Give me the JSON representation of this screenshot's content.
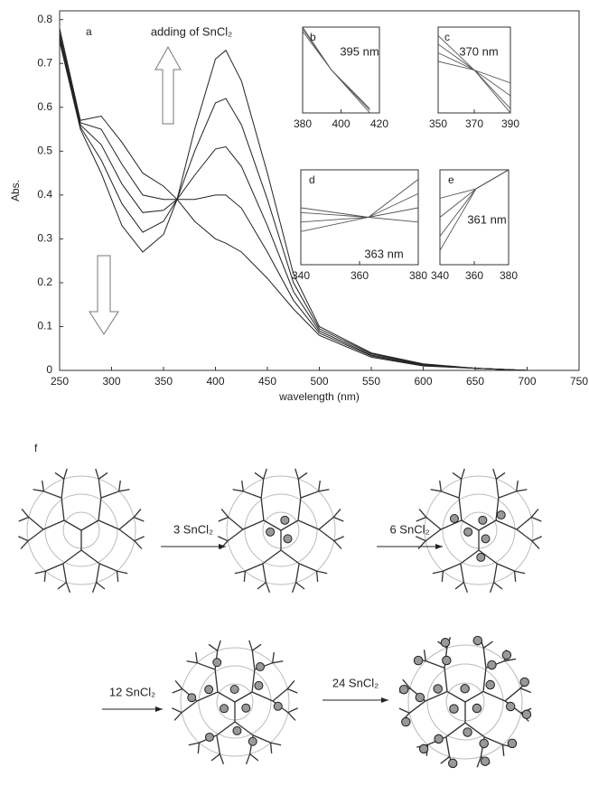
{
  "chart_data": [
    {
      "type": "line",
      "panel": "a",
      "xlabel": "wavelength (nm)",
      "ylabel": "Abs.",
      "annotation": "adding of SnCl₂",
      "x": [
        250,
        270,
        290,
        310,
        330,
        350,
        363,
        380,
        400,
        410,
        425,
        450,
        475,
        500,
        550,
        600,
        650,
        700,
        750
      ],
      "series": [
        {
          "color": "#222222",
          "values": [
            0.78,
            0.57,
            0.58,
            0.52,
            0.45,
            0.42,
            0.39,
            0.34,
            0.3,
            0.29,
            0.27,
            0.21,
            0.14,
            0.08,
            0.03,
            0.01,
            0.005,
            0,
            0
          ]
        },
        {
          "color": "#222222",
          "values": [
            0.77,
            0.565,
            0.55,
            0.47,
            0.4,
            0.39,
            0.39,
            0.39,
            0.4,
            0.4,
            0.37,
            0.27,
            0.16,
            0.085,
            0.033,
            0.011,
            0.005,
            0,
            0
          ]
        },
        {
          "color": "#222222",
          "values": [
            0.765,
            0.56,
            0.515,
            0.425,
            0.36,
            0.365,
            0.39,
            0.445,
            0.505,
            0.51,
            0.465,
            0.33,
            0.18,
            0.09,
            0.035,
            0.0125,
            0.005,
            0,
            0
          ]
        },
        {
          "color": "#222222",
          "values": [
            0.758,
            0.555,
            0.48,
            0.38,
            0.315,
            0.34,
            0.39,
            0.5,
            0.61,
            0.62,
            0.56,
            0.39,
            0.2,
            0.095,
            0.038,
            0.014,
            0.005,
            0,
            0
          ]
        },
        {
          "color": "#222222",
          "values": [
            0.75,
            0.55,
            0.45,
            0.33,
            0.27,
            0.31,
            0.39,
            0.55,
            0.71,
            0.73,
            0.66,
            0.45,
            0.22,
            0.1,
            0.04,
            0.015,
            0.005,
            0,
            0
          ]
        }
      ],
      "xlim": [
        250,
        750
      ],
      "ylim": [
        0,
        0.82
      ],
      "xticks": [
        250,
        300,
        350,
        400,
        450,
        500,
        550,
        600,
        650,
        700,
        750
      ],
      "yticks": [
        0,
        0.1,
        0.2,
        0.3,
        0.4,
        0.5,
        0.6,
        0.7,
        0.8
      ]
    },
    {
      "type": "line",
      "panel": "b",
      "annotation": "395 nm",
      "x": [
        380,
        395,
        415
      ],
      "series": [
        {
          "color": "#555555",
          "values": [
            1,
            0.5,
            0
          ]
        },
        {
          "color": "#555555",
          "values": [
            0.98,
            0.5,
            0.03
          ]
        },
        {
          "color": "#555555",
          "values": [
            0.95,
            0.5,
            0.05
          ]
        }
      ],
      "xlim": [
        380,
        420
      ],
      "ylim": [
        0,
        1
      ],
      "xticks": [
        380,
        400,
        420
      ]
    },
    {
      "type": "line",
      "panel": "c",
      "annotation": "370 nm",
      "x": [
        350,
        370,
        390
      ],
      "series": [
        {
          "color": "#555555",
          "values": [
            0.8,
            0.5,
            0.05
          ]
        },
        {
          "color": "#555555",
          "values": [
            0.7,
            0.5,
            0.2
          ]
        },
        {
          "color": "#555555",
          "values": [
            0.6,
            0.5,
            0.35
          ]
        },
        {
          "color": "#555555",
          "values": [
            0.9,
            0.5,
            0
          ]
        }
      ],
      "xlim": [
        350,
        390
      ],
      "ylim": [
        0,
        1
      ],
      "xticks": [
        350,
        370,
        390
      ]
    },
    {
      "type": "line",
      "panel": "d",
      "annotation": "363 nm",
      "x": [
        340,
        363,
        380
      ],
      "series": [
        {
          "color": "#555555",
          "values": [
            0.45,
            0.5,
            0.9
          ]
        },
        {
          "color": "#555555",
          "values": [
            0.35,
            0.5,
            0.75
          ]
        },
        {
          "color": "#555555",
          "values": [
            0.55,
            0.5,
            0.6
          ]
        },
        {
          "color": "#555555",
          "values": [
            0.6,
            0.5,
            0.45
          ]
        }
      ],
      "xlim": [
        340,
        380
      ],
      "ylim": [
        0,
        1
      ],
      "xticks": [
        340,
        360,
        380
      ]
    },
    {
      "type": "line",
      "panel": "e",
      "annotation": "361 nm",
      "x": [
        340,
        361,
        380
      ],
      "series": [
        {
          "color": "#555555",
          "values": [
            0.7,
            0.8,
            1
          ]
        },
        {
          "color": "#555555",
          "values": [
            0.5,
            0.8,
            1
          ]
        },
        {
          "color": "#555555",
          "values": [
            0.3,
            0.8,
            1
          ]
        },
        {
          "color": "#555555",
          "values": [
            0.15,
            0.8,
            1
          ]
        }
      ],
      "xlim": [
        340,
        380
      ],
      "ylim": [
        0,
        1
      ],
      "xticks": [
        340,
        360,
        380
      ]
    }
  ],
  "diagram": {
    "label": "f",
    "steps": [
      "3 SnCl₂",
      "6 SnCl₂",
      "12 SnCl₂",
      "24 SnCl₂"
    ]
  }
}
